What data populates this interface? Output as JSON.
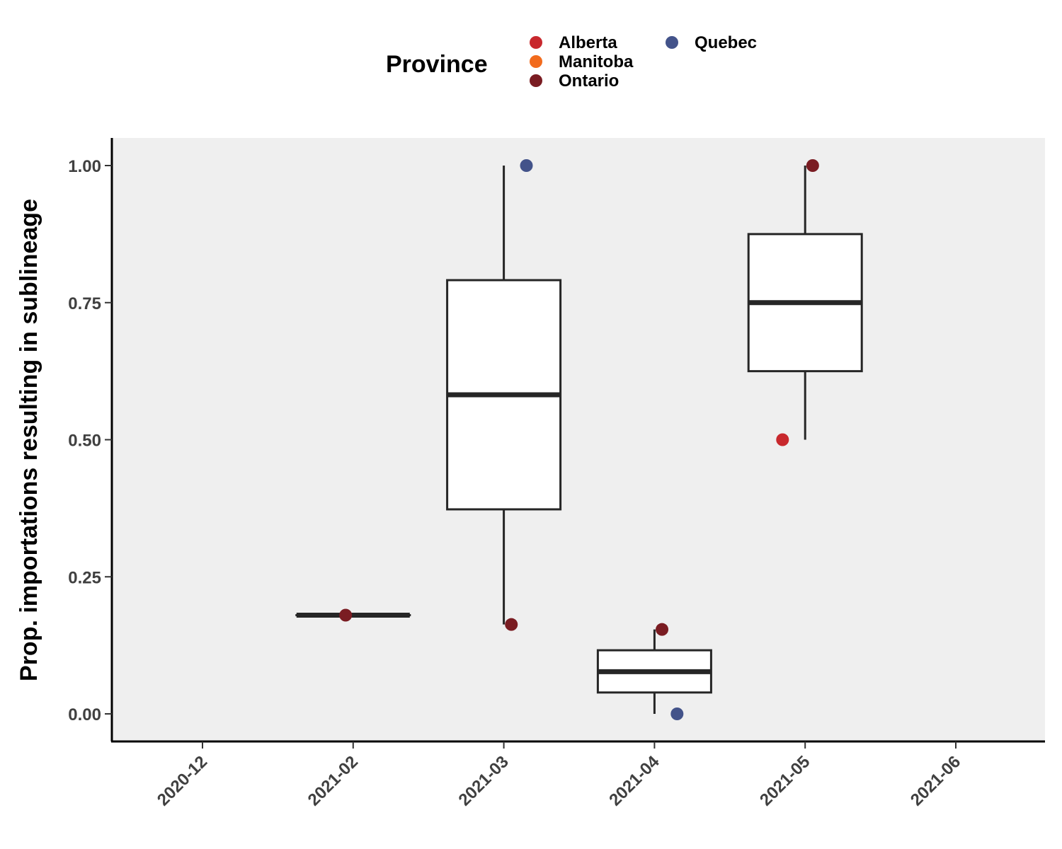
{
  "chart_data": {
    "type": "box",
    "ylabel": "Prop. importations resulting in sublineage",
    "xlabel": "",
    "ylim": [
      -0.05,
      1.05
    ],
    "yticks": [
      "0.00",
      "0.25",
      "0.50",
      "0.75",
      "1.00"
    ],
    "categories": [
      "2020-12",
      "2021-02",
      "2021-03",
      "2021-04",
      "2021-05",
      "2021-06"
    ],
    "grid": false,
    "legend": {
      "title": "Province",
      "position": "top",
      "items": [
        {
          "label": "Alberta",
          "color": "#c8282d"
        },
        {
          "label": "Manitoba",
          "color": "#f26b1d"
        },
        {
          "label": "Ontario",
          "color": "#7a1c22"
        },
        {
          "label": "Quebec",
          "color": "#43538a"
        }
      ]
    },
    "boxes": [
      {
        "category": "2021-02",
        "whisker_low": 0.18,
        "q1": 0.18,
        "median": 0.18,
        "q3": 0.18,
        "whisker_high": 0.18
      },
      {
        "category": "2021-03",
        "whisker_low": 0.163,
        "q1": 0.373,
        "median": 0.582,
        "q3": 0.791,
        "whisker_high": 1.0
      },
      {
        "category": "2021-04",
        "whisker_low": 0.0,
        "q1": 0.039,
        "median": 0.077,
        "q3": 0.116,
        "whisker_high": 0.154
      },
      {
        "category": "2021-05",
        "whisker_low": 0.5,
        "q1": 0.625,
        "median": 0.75,
        "q3": 0.875,
        "whisker_high": 1.0
      }
    ],
    "points": [
      {
        "category": "2021-02",
        "province": "Ontario",
        "y": 0.18,
        "offset": -0.05
      },
      {
        "category": "2021-03",
        "province": "Ontario",
        "y": 0.163,
        "offset": 0.05
      },
      {
        "category": "2021-03",
        "province": "Quebec",
        "y": 1.0,
        "offset": 0.15
      },
      {
        "category": "2021-04",
        "province": "Ontario",
        "y": 0.154,
        "offset": 0.05
      },
      {
        "category": "2021-04",
        "province": "Quebec",
        "y": 0.0,
        "offset": 0.15
      },
      {
        "category": "2021-05",
        "province": "Alberta",
        "y": 0.5,
        "offset": -0.15
      },
      {
        "category": "2021-05",
        "province": "Ontario",
        "y": 1.0,
        "offset": 0.05
      }
    ]
  }
}
